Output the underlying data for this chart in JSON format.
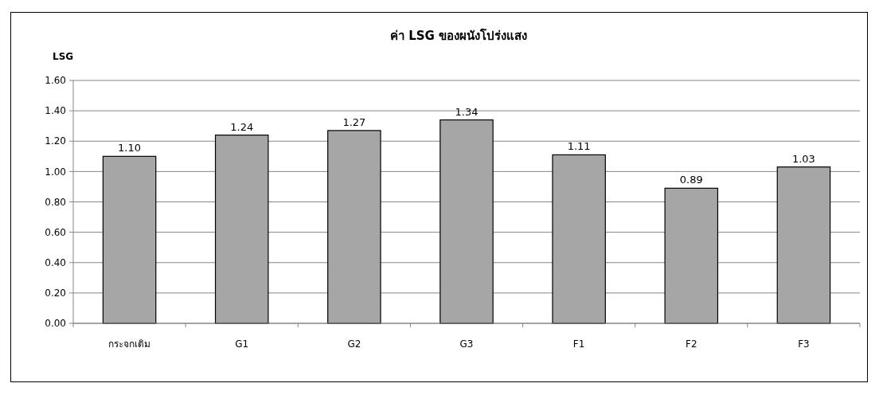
{
  "chart_data": {
    "type": "bar",
    "title": "ค่า LSG ของผนังโปร่งแสง",
    "ylabel": "LSG",
    "categories": [
      "กระจกเดิม",
      "G1",
      "G2",
      "G3",
      "F1",
      "F2",
      "F3"
    ],
    "values": [
      1.1,
      1.24,
      1.27,
      1.34,
      1.11,
      0.89,
      1.03
    ],
    "value_labels": [
      "1.10",
      "1.24",
      "1.27",
      "1.34",
      "1.11",
      "0.89",
      "1.03"
    ],
    "color": "#a6a6a6",
    "ylim": [
      0,
      1.6
    ],
    "yticks": [
      {
        "value": 0,
        "label": "0.00"
      },
      {
        "value": 0.2,
        "label": "0.20"
      },
      {
        "value": 0.4,
        "label": "0.40"
      },
      {
        "value": 0.6,
        "label": "0.60"
      },
      {
        "value": 0.8,
        "label": "0.80"
      },
      {
        "value": 1,
        "label": "1.00"
      },
      {
        "value": 1.2,
        "label": "1.20"
      },
      {
        "value": 1.4,
        "label": "1.40"
      },
      {
        "value": 1.6,
        "label": "1.60"
      }
    ],
    "grid": "y"
  }
}
